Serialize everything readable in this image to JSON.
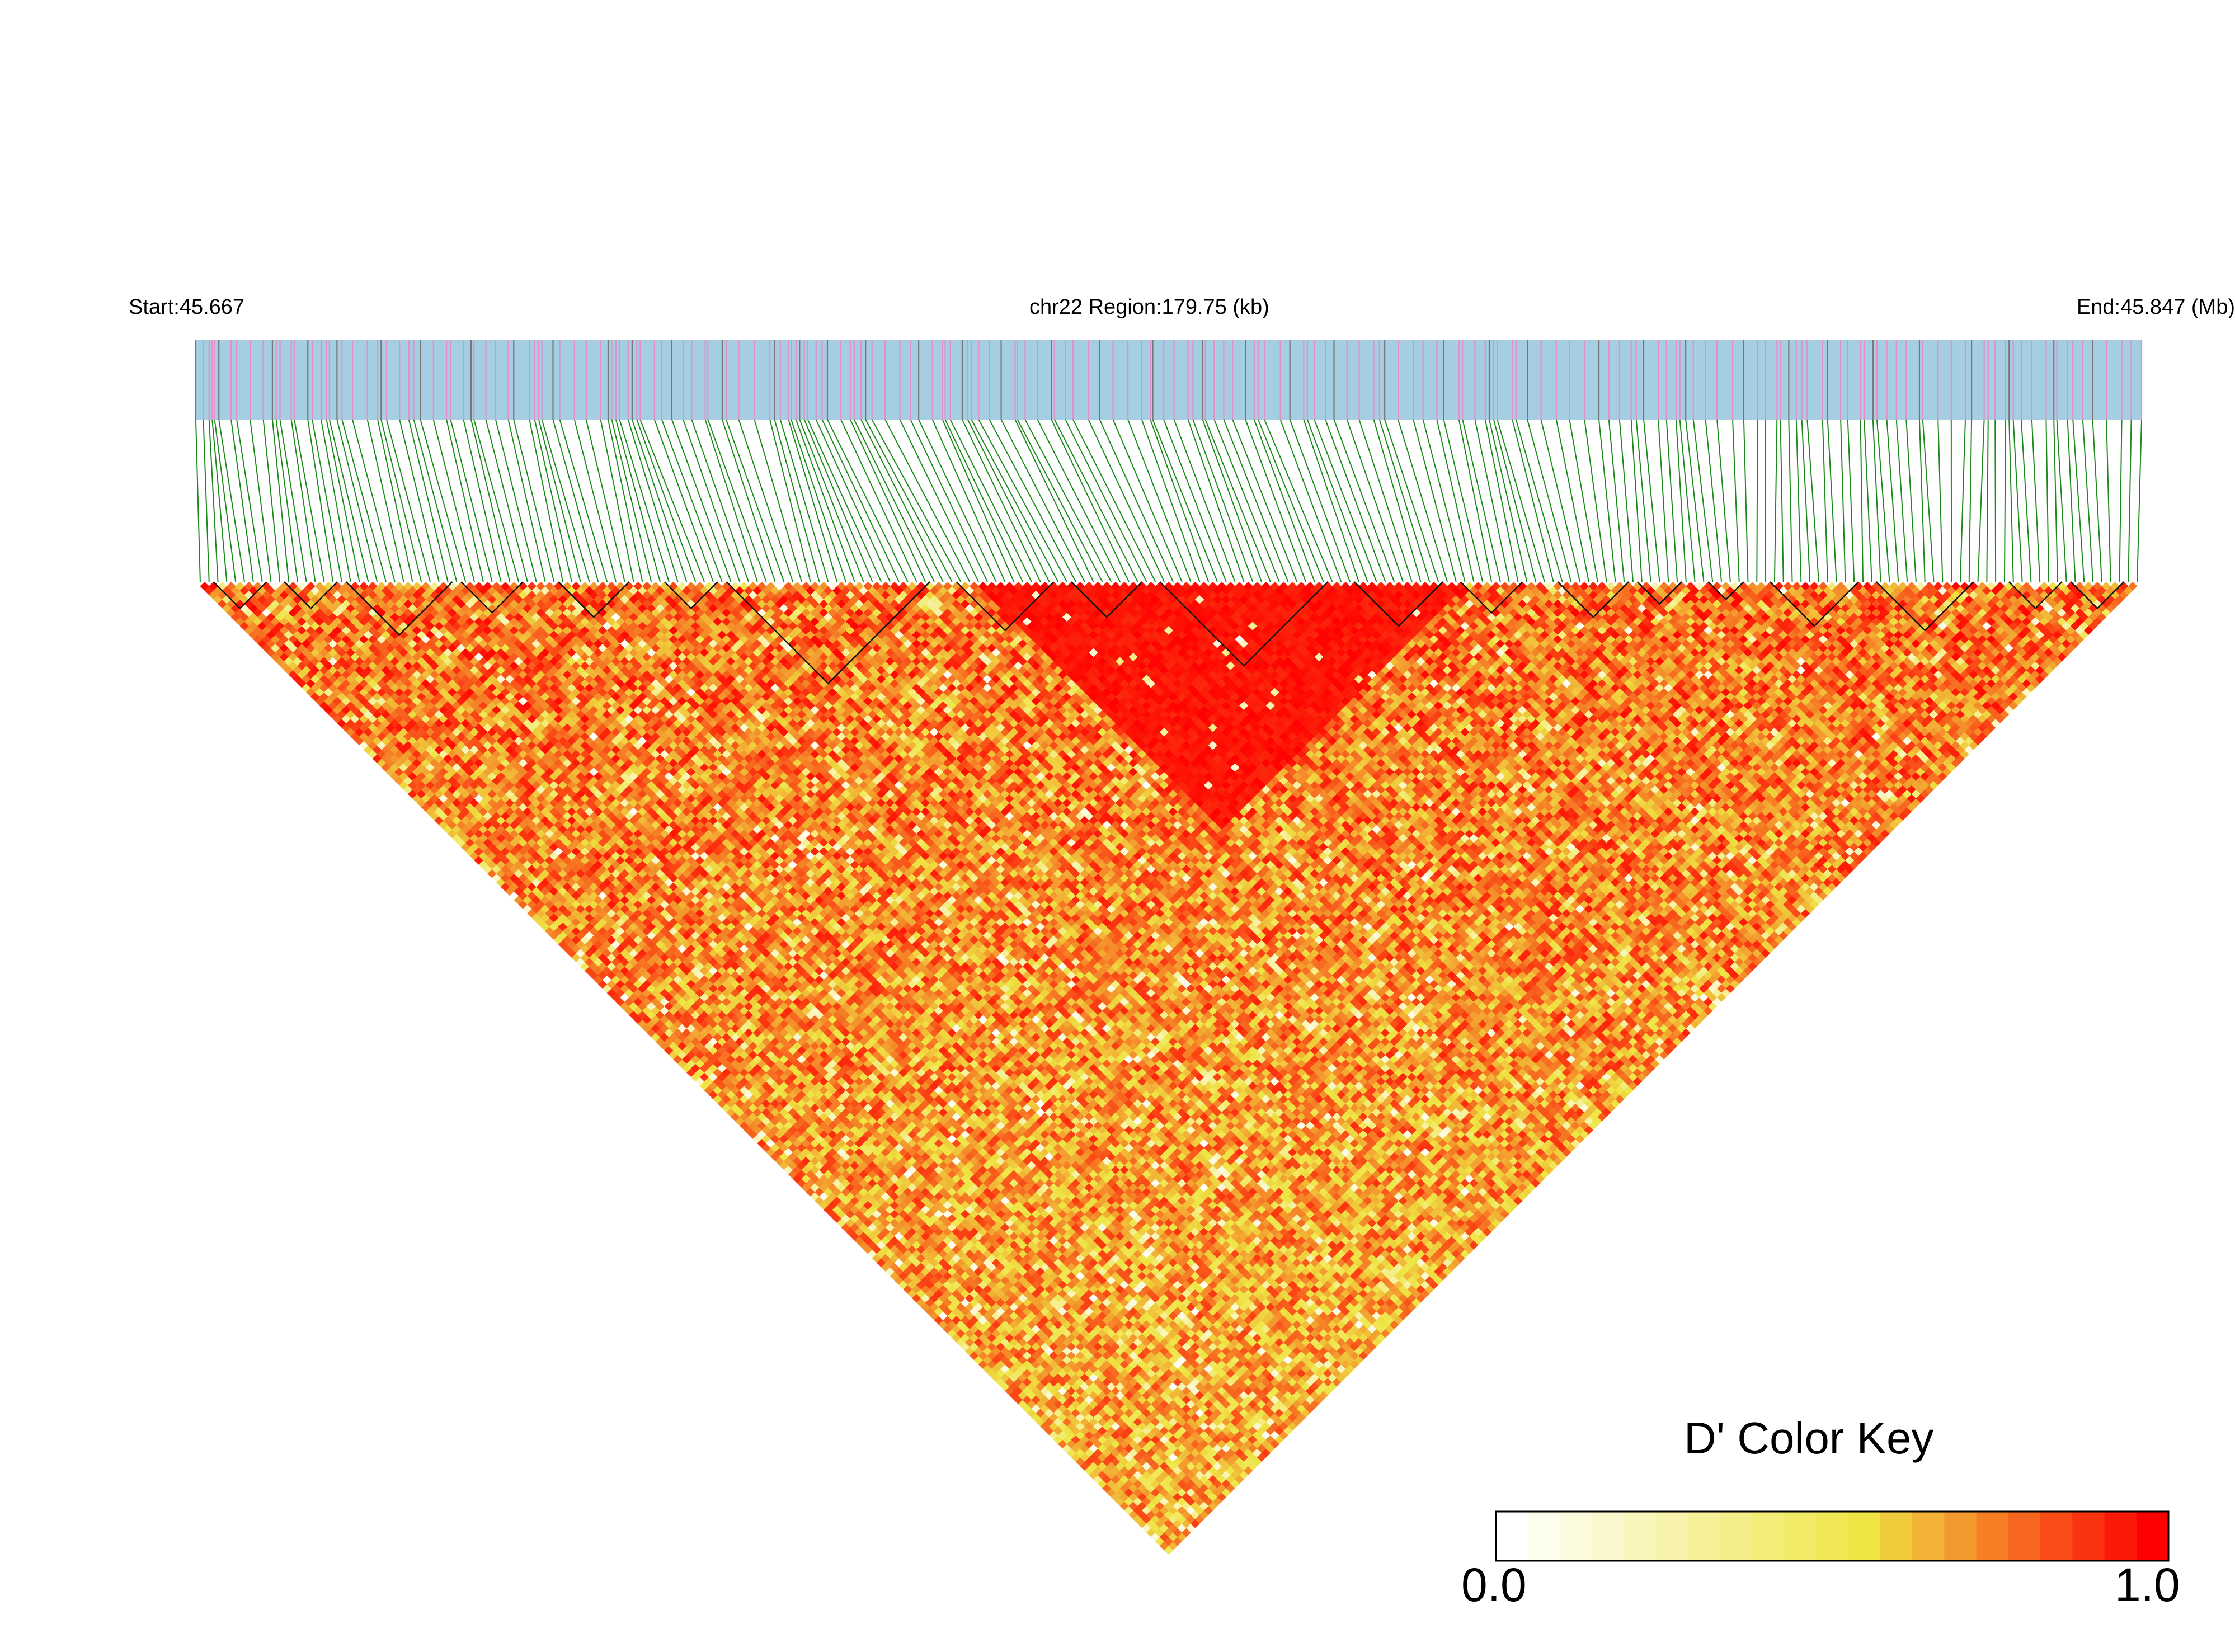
{
  "header": {
    "start_label": "Start:45.667",
    "region_label": "chr22 Region:179.75 (kb)",
    "end_label": "End:45.847 (Mb)"
  },
  "colors": {
    "track_bg": "#a6cee3",
    "snp_pink": "#e48fc8",
    "snp_gray": "#777777",
    "connector_green": "#1b8a1b",
    "d_low": "#ffffff",
    "d_mid": "#eee544",
    "d_high": "#ff0000"
  },
  "chart_data": {
    "type": "heatmap",
    "subtype": "linkage-disequilibrium-triangle",
    "chromosome": "chr22",
    "region_start_mb": 45.667,
    "region_end_mb": 45.847,
    "region_length_kb": 179.75,
    "metric": "D'",
    "value_range": [
      0.0,
      1.0
    ],
    "color_key": {
      "title": "D' Color Key",
      "min_label": "0.0",
      "max_label": "1.0",
      "steps": 21
    },
    "snp_count": 220,
    "haplotype_block_count": 22,
    "high_ld_block_snp_range": [
      88,
      143
    ]
  }
}
